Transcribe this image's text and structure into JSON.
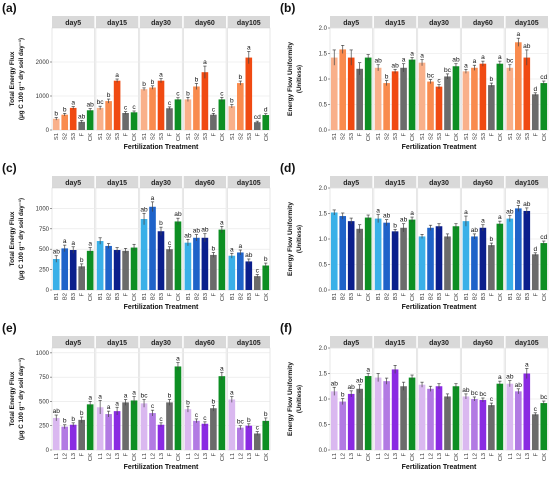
{
  "chart_data": [
    {
      "panel_label": "(a)",
      "type": "bar",
      "facets": [
        "day5",
        "day15",
        "day30",
        "day60",
        "day105"
      ],
      "categories": [
        "S1",
        "S2",
        "S3",
        "F",
        "CK"
      ],
      "colors": [
        "#f9b08a",
        "#f98b4e",
        "#f04a12",
        "#6b6b6b",
        "#0d8f23"
      ],
      "ylabel": "Total Energy Flux",
      "ylabel_units": "(μg C 100 g⁻¹ dry soil day⁻¹)",
      "xlabel": "Fertilization Treatment",
      "ylim": [
        0,
        3000
      ],
      "yticks": [
        0,
        1000,
        2000
      ],
      "grid": true,
      "series": [
        {
          "facet": "day5",
          "values": [
            330,
            450,
            650,
            240,
            580
          ],
          "errors": [
            40,
            40,
            40,
            40,
            50
          ],
          "letters": [
            "b",
            "b",
            "a",
            "ab",
            "ab"
          ]
        },
        {
          "facet": "day15",
          "values": [
            650,
            850,
            1450,
            500,
            520
          ],
          "errors": [
            50,
            60,
            50,
            40,
            40
          ],
          "letters": [
            "bc",
            "b",
            "a",
            "c",
            "c"
          ]
        },
        {
          "facet": "day30",
          "values": [
            1200,
            1250,
            1450,
            640,
            900
          ],
          "errors": [
            40,
            50,
            60,
            40,
            50
          ],
          "letters": [
            "b",
            "b",
            "a",
            "c",
            "c"
          ]
        },
        {
          "facet": "day60",
          "values": [
            900,
            1280,
            1700,
            450,
            900
          ],
          "errors": [
            60,
            90,
            180,
            40,
            60
          ],
          "letters": [
            "b",
            "b",
            "a",
            "c",
            "c"
          ]
        },
        {
          "facet": "day105",
          "values": [
            700,
            1380,
            2130,
            230,
            440
          ],
          "errors": [
            50,
            60,
            180,
            30,
            40
          ],
          "letters": [
            "b",
            "b",
            "a",
            "cd",
            "d"
          ]
        }
      ]
    },
    {
      "panel_label": "(b)",
      "type": "bar",
      "facets": [
        "day5",
        "day15",
        "day30",
        "day60",
        "day105"
      ],
      "categories": [
        "S1",
        "S2",
        "S3",
        "F",
        "CK"
      ],
      "colors": [
        "#f9b08a",
        "#f98b4e",
        "#f04a12",
        "#6b6b6b",
        "#0d8f23"
      ],
      "ylabel": "Energy Flow Uniformity",
      "ylabel_units": "(Unitless)",
      "xlabel": "Fertilization Treatment",
      "ylim": [
        0,
        2.0
      ],
      "yticks": [
        0.0,
        0.5,
        1.0,
        1.5,
        2.0
      ],
      "grid": true,
      "series": [
        {
          "facet": "day5",
          "values": [
            1.42,
            1.58,
            1.42,
            1.2,
            1.42
          ],
          "errors": [
            0.15,
            0.08,
            0.15,
            0.12,
            0.06
          ],
          "letters": [
            "",
            "",
            "",
            "",
            ""
          ]
        },
        {
          "facet": "day15",
          "values": [
            1.22,
            0.92,
            1.15,
            1.22,
            1.38
          ],
          "errors": [
            0.06,
            0.05,
            0.04,
            0.08,
            0.04
          ],
          "letters": [
            "ab",
            "b",
            "ab",
            "a",
            "a"
          ]
        },
        {
          "facet": "day30",
          "values": [
            1.32,
            0.95,
            0.85,
            1.05,
            1.25
          ],
          "errors": [
            0.06,
            0.04,
            0.04,
            0.05,
            0.05
          ],
          "letters": [
            "a",
            "bc",
            "c",
            "bc",
            "ab"
          ]
        },
        {
          "facet": "day60",
          "values": [
            1.15,
            1.22,
            1.3,
            0.88,
            1.3
          ],
          "errors": [
            0.04,
            0.05,
            0.05,
            0.04,
            0.05
          ],
          "letters": [
            "a",
            "a",
            "a",
            "b",
            "a"
          ]
        },
        {
          "facet": "day105",
          "values": [
            1.22,
            1.72,
            1.42,
            0.7,
            0.92
          ],
          "errors": [
            0.06,
            0.08,
            0.15,
            0.03,
            0.04
          ],
          "letters": [
            "bc",
            "a",
            "ab",
            "d",
            "cd"
          ]
        }
      ]
    },
    {
      "panel_label": "(c)",
      "type": "bar",
      "facets": [
        "day5",
        "day15",
        "day30",
        "day60",
        "day105"
      ],
      "categories": [
        "B1",
        "B2",
        "B3",
        "F",
        "CK"
      ],
      "colors": [
        "#3ab0e8",
        "#1f63c9",
        "#0b1f8c",
        "#6b6b6b",
        "#0d8f23"
      ],
      "ylabel": "Total Energy Flux",
      "ylabel_units": "(μg C 100 g⁻¹ dry soil day⁻¹)",
      "xlabel": "Fertilization Treatment",
      "ylim": [
        0,
        1250
      ],
      "yticks": [
        0,
        250,
        500,
        750,
        1000
      ],
      "grid": true,
      "series": [
        {
          "facet": "day5",
          "values": [
            380,
            510,
            490,
            290,
            480
          ],
          "errors": [
            40,
            40,
            40,
            30,
            40
          ],
          "letters": [
            "ab",
            "a",
            "a",
            "b",
            "a"
          ]
        },
        {
          "facet": "day15",
          "values": [
            600,
            540,
            490,
            480,
            520
          ],
          "errors": [
            40,
            30,
            30,
            30,
            40
          ],
          "letters": [
            "",
            "",
            "",
            "",
            ""
          ]
        },
        {
          "facet": "day30",
          "values": [
            870,
            1020,
            720,
            500,
            840
          ],
          "errors": [
            70,
            60,
            50,
            30,
            40
          ],
          "letters": [
            "ab",
            "a",
            "b",
            "c",
            "ab"
          ]
        },
        {
          "facet": "day60",
          "values": [
            580,
            640,
            640,
            430,
            740
          ],
          "errors": [
            40,
            40,
            50,
            30,
            40
          ],
          "letters": [
            "ab",
            "ab",
            "ab",
            "b",
            "a"
          ]
        },
        {
          "facet": "day105",
          "values": [
            420,
            460,
            350,
            170,
            300
          ],
          "errors": [
            30,
            30,
            30,
            20,
            30
          ],
          "letters": [
            "a",
            "a",
            "ab",
            "c",
            "b"
          ]
        }
      ]
    },
    {
      "panel_label": "(d)",
      "type": "bar",
      "facets": [
        "day5",
        "day15",
        "day30",
        "day60",
        "day105"
      ],
      "categories": [
        "B1",
        "B2",
        "B3",
        "F",
        "CK"
      ],
      "colors": [
        "#3ab0e8",
        "#1f63c9",
        "#0b1f8c",
        "#6b6b6b",
        "#0d8f23"
      ],
      "ylabel": "Energy Flow Uniformity",
      "ylabel_units": "(Unitless)",
      "xlabel": "Fertilization Treatment",
      "ylim": [
        0,
        2.0
      ],
      "yticks": [
        0.0,
        0.5,
        1.0,
        1.5,
        2.0
      ],
      "grid": true,
      "series": [
        {
          "facet": "day5",
          "values": [
            1.52,
            1.45,
            1.35,
            1.2,
            1.42
          ],
          "errors": [
            0.05,
            0.06,
            0.06,
            0.08,
            0.05
          ],
          "letters": [
            "",
            "",
            "",
            "",
            ""
          ]
        },
        {
          "facet": "day15",
          "values": [
            1.4,
            1.32,
            1.15,
            1.22,
            1.38
          ],
          "errors": [
            0.08,
            0.06,
            0.04,
            0.08,
            0.05
          ],
          "letters": [
            "a",
            "ab",
            "b",
            "ab",
            "a"
          ]
        },
        {
          "facet": "day30",
          "values": [
            1.05,
            1.22,
            1.25,
            1.05,
            1.25
          ],
          "errors": [
            0.04,
            0.05,
            0.05,
            0.05,
            0.05
          ],
          "letters": [
            "",
            "",
            "",
            "",
            ""
          ]
        },
        {
          "facet": "day60",
          "values": [
            1.35,
            1.05,
            1.22,
            0.88,
            1.3
          ],
          "errors": [
            0.1,
            0.05,
            0.06,
            0.04,
            0.05
          ],
          "letters": [
            "a",
            "ab",
            "a",
            "b",
            "a"
          ]
        },
        {
          "facet": "day105",
          "values": [
            1.4,
            1.6,
            1.55,
            0.7,
            0.92
          ],
          "errors": [
            0.06,
            0.06,
            0.06,
            0.03,
            0.04
          ],
          "letters": [
            "ab",
            "a",
            "ab",
            "d",
            "cd"
          ]
        }
      ]
    },
    {
      "panel_label": "(e)",
      "type": "bar",
      "facets": [
        "day5",
        "day15",
        "day30",
        "day60",
        "day105"
      ],
      "categories": [
        "L1",
        "L2",
        "L3",
        "F",
        "CK"
      ],
      "colors": [
        "#dab8f0",
        "#b27ae3",
        "#8a2be2",
        "#6b6b6b",
        "#0d8f23"
      ],
      "ylabel": "Total Energy Flux",
      "ylabel_units": "(μg C 100 g⁻¹ dry soil day⁻¹)",
      "xlabel": "Fertilization Treatment",
      "ylim": [
        0,
        1050
      ],
      "yticks": [
        0,
        250,
        500,
        750,
        1000
      ],
      "grid": true,
      "series": [
        {
          "facet": "day5",
          "values": [
            330,
            240,
            260,
            310,
            470
          ],
          "errors": [
            30,
            20,
            20,
            30,
            30
          ],
          "letters": [
            "ab",
            "b",
            "b",
            "b",
            "a"
          ]
        },
        {
          "facet": "day15",
          "values": [
            440,
            370,
            400,
            490,
            510
          ],
          "errors": [
            70,
            30,
            40,
            30,
            40
          ],
          "letters": [
            "a",
            "a",
            "a",
            "a",
            "a"
          ]
        },
        {
          "facet": "day30",
          "values": [
            480,
            380,
            260,
            490,
            860
          ],
          "errors": [
            40,
            30,
            20,
            30,
            40
          ],
          "letters": [
            "bc",
            "c",
            "c",
            "b",
            "a"
          ]
        },
        {
          "facet": "day60",
          "values": [
            420,
            300,
            270,
            430,
            760
          ],
          "errors": [
            30,
            20,
            20,
            30,
            40
          ],
          "letters": [
            "b",
            "c",
            "c",
            "b",
            "a"
          ]
        },
        {
          "facet": "day105",
          "values": [
            520,
            230,
            250,
            170,
            300
          ],
          "errors": [
            30,
            20,
            20,
            20,
            30
          ],
          "letters": [
            "a",
            "bc",
            "b",
            "c",
            "b"
          ]
        }
      ]
    },
    {
      "panel_label": "(f)",
      "type": "bar",
      "facets": [
        "day5",
        "day15",
        "day30",
        "day60",
        "day105"
      ],
      "categories": [
        "L1",
        "L2",
        "L3",
        "F",
        "CK"
      ],
      "colors": [
        "#dab8f0",
        "#b27ae3",
        "#8a2be2",
        "#6b6b6b",
        "#0d8f23"
      ],
      "ylabel": "Energy Flow Uniformity",
      "ylabel_units": "(Unitless)",
      "xlabel": "Fertilization Treatment",
      "ylim": [
        0,
        2.0
      ],
      "yticks": [
        0.0,
        0.5,
        1.0,
        1.5,
        2.0
      ],
      "grid": true,
      "series": [
        {
          "facet": "day5",
          "values": [
            1.15,
            0.95,
            1.1,
            1.2,
            1.45
          ],
          "errors": [
            0.08,
            0.06,
            0.06,
            0.08,
            0.05
          ],
          "letters": [
            "ab",
            "b",
            "ab",
            "ab",
            "a"
          ]
        },
        {
          "facet": "day15",
          "values": [
            1.42,
            1.35,
            1.58,
            1.25,
            1.42
          ],
          "errors": [
            0.08,
            0.06,
            0.08,
            0.08,
            0.05
          ],
          "letters": [
            "",
            "",
            "",
            "",
            ""
          ]
        },
        {
          "facet": "day30",
          "values": [
            1.28,
            1.2,
            1.25,
            1.05,
            1.25
          ],
          "errors": [
            0.05,
            0.05,
            0.05,
            0.05,
            0.05
          ],
          "letters": [
            "",
            "",
            "",
            "",
            ""
          ]
        },
        {
          "facet": "day60",
          "values": [
            1.05,
            1.0,
            0.98,
            0.88,
            1.3
          ],
          "errors": [
            0.05,
            0.04,
            0.04,
            0.04,
            0.05
          ],
          "letters": [
            "ab",
            "bc",
            "bc",
            "c",
            "a"
          ]
        },
        {
          "facet": "day105",
          "values": [
            1.3,
            1.15,
            1.5,
            0.7,
            0.92
          ],
          "errors": [
            0.06,
            0.05,
            0.1,
            0.03,
            0.04
          ],
          "letters": [
            "ab",
            "ab",
            "a",
            "c",
            "bc"
          ]
        }
      ]
    }
  ]
}
